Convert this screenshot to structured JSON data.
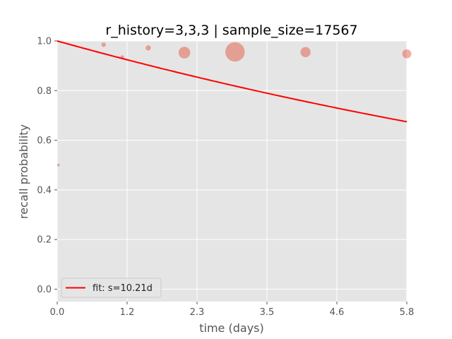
{
  "chart_data": {
    "type": "scatter",
    "title": "r_history=3,3,3 | sample_size=17567",
    "xlabel": "time (days)",
    "ylabel": "recall probability",
    "xlim": [
      0,
      5.8
    ],
    "ylim": [
      -0.05,
      1.0
    ],
    "x_ticks": [
      0.0,
      1.16,
      2.32,
      3.48,
      4.64,
      5.8
    ],
    "x_tick_labels": [
      "0.0",
      "1.2",
      "2.3",
      "3.5",
      "4.6",
      "5.8"
    ],
    "y_ticks": [
      0.0,
      0.2,
      0.4,
      0.6,
      0.8,
      1.0
    ],
    "y_tick_labels": [
      "0.0",
      "0.2",
      "0.4",
      "0.6",
      "0.8",
      "1.0"
    ],
    "grid": true,
    "background_color": "#e5e5e5",
    "point_color": "#e24a33",
    "fit_color": "#ff0000",
    "points": [
      {
        "x": 0.02,
        "y": 0.5,
        "size": 1
      },
      {
        "x": 0.77,
        "y": 0.985,
        "size": 3
      },
      {
        "x": 1.08,
        "y": 0.935,
        "size": 2
      },
      {
        "x": 1.51,
        "y": 0.972,
        "size": 4
      },
      {
        "x": 2.11,
        "y": 0.953,
        "size": 20
      },
      {
        "x": 2.95,
        "y": 0.956,
        "size": 55
      },
      {
        "x": 4.12,
        "y": 0.955,
        "size": 15
      },
      {
        "x": 5.8,
        "y": 0.948,
        "size": 12
      }
    ],
    "fit": {
      "label": "fit: s=10.21d",
      "s": 10.21
    },
    "legend_position": "lower-left"
  }
}
